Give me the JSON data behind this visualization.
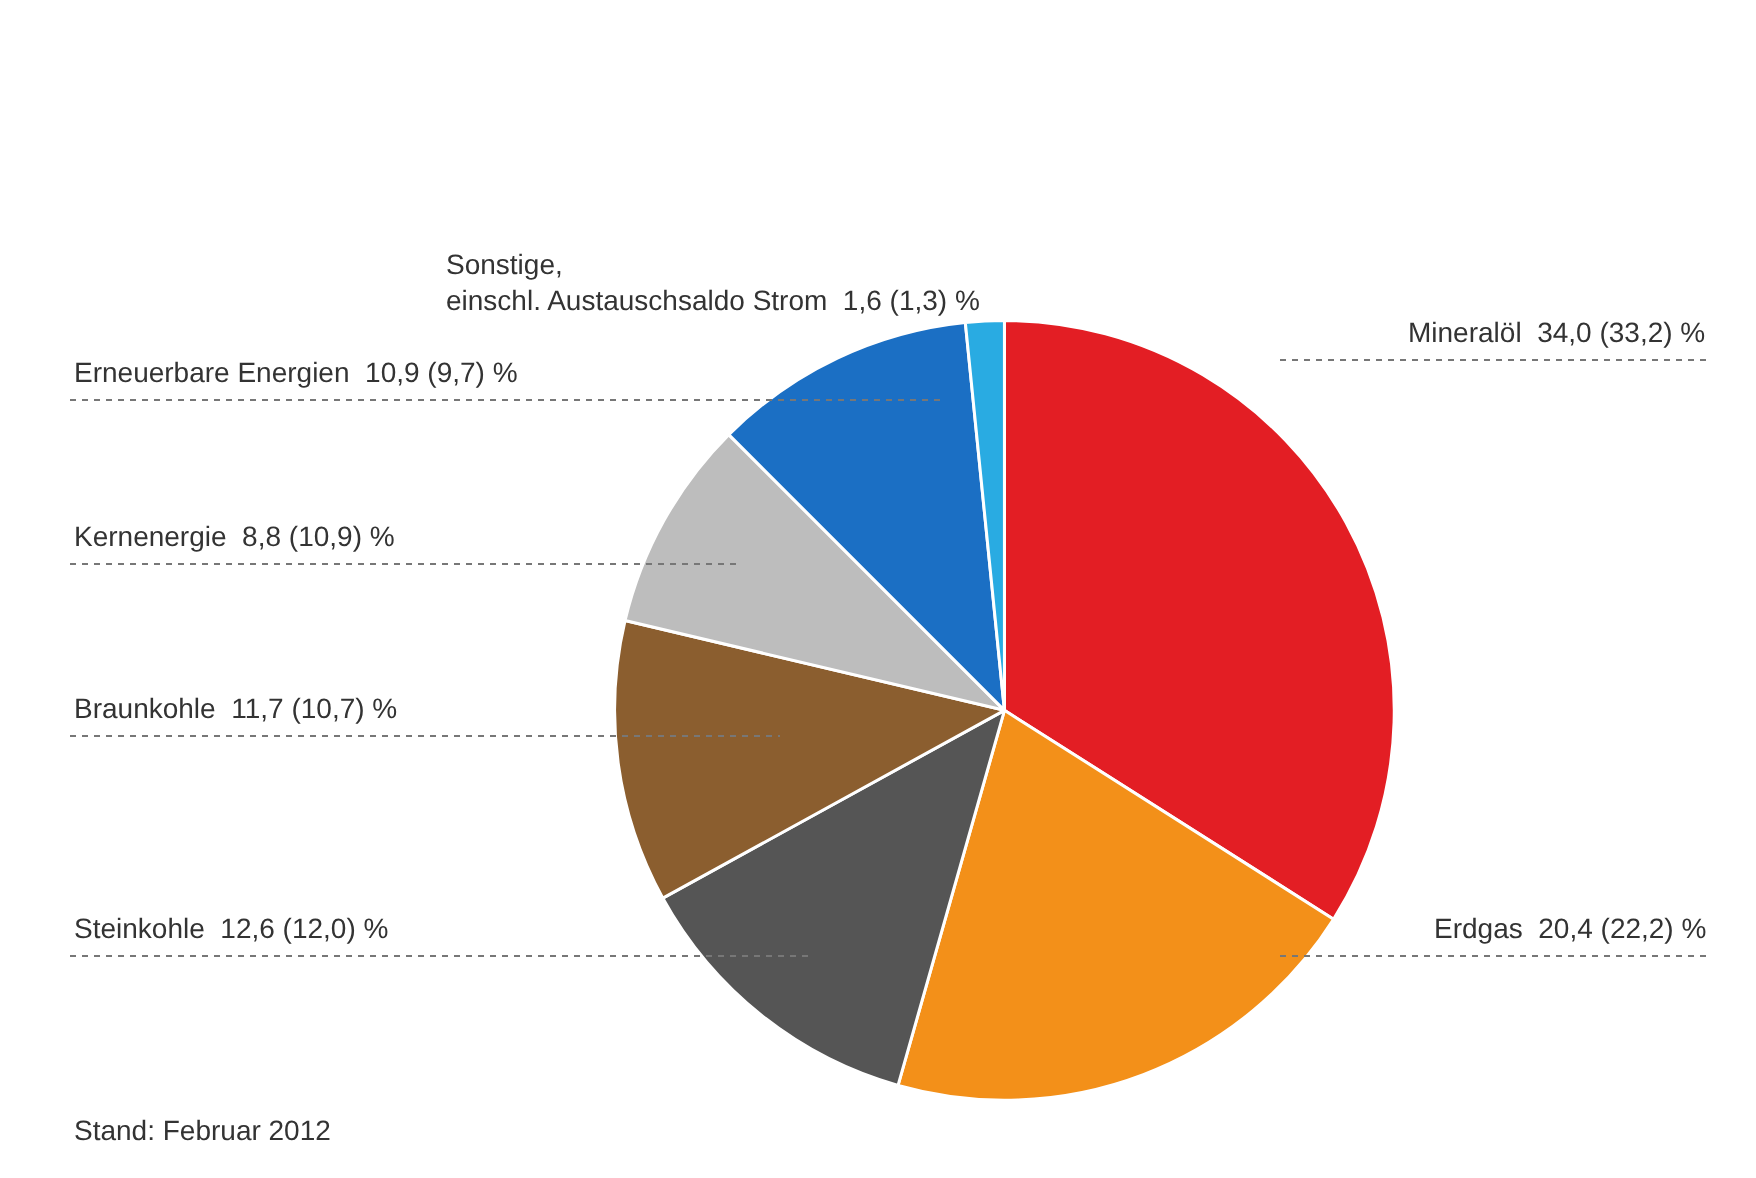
{
  "chart_data": {
    "type": "pie",
    "categories": [
      "Mineralöl",
      "Erdgas",
      "Steinkohle",
      "Braunkohle",
      "Kernenergie",
      "Erneuerbare Energien",
      "Sonstige,\neinschl. Austauschsaldo Strom"
    ],
    "values": [
      34.0,
      20.4,
      12.6,
      11.7,
      8.8,
      10.9,
      1.6
    ],
    "value_labels": [
      "34,0 (33,2) %",
      "20,4 (22,2) %",
      "12,6 (12,0) %",
      "11,7 (10,7) %",
      "8,8 (10,9) %",
      "10,9 (9,7) %",
      "1,6 (1,3) %"
    ],
    "colors": [
      "#e31e24",
      "#f39019",
      "#555555",
      "#8b5e2f",
      "#bdbdbd",
      "#1b6fc4",
      "#29abe2"
    ],
    "legend": false,
    "annotations": [
      "Stand: Februar 2012"
    ]
  }
}
